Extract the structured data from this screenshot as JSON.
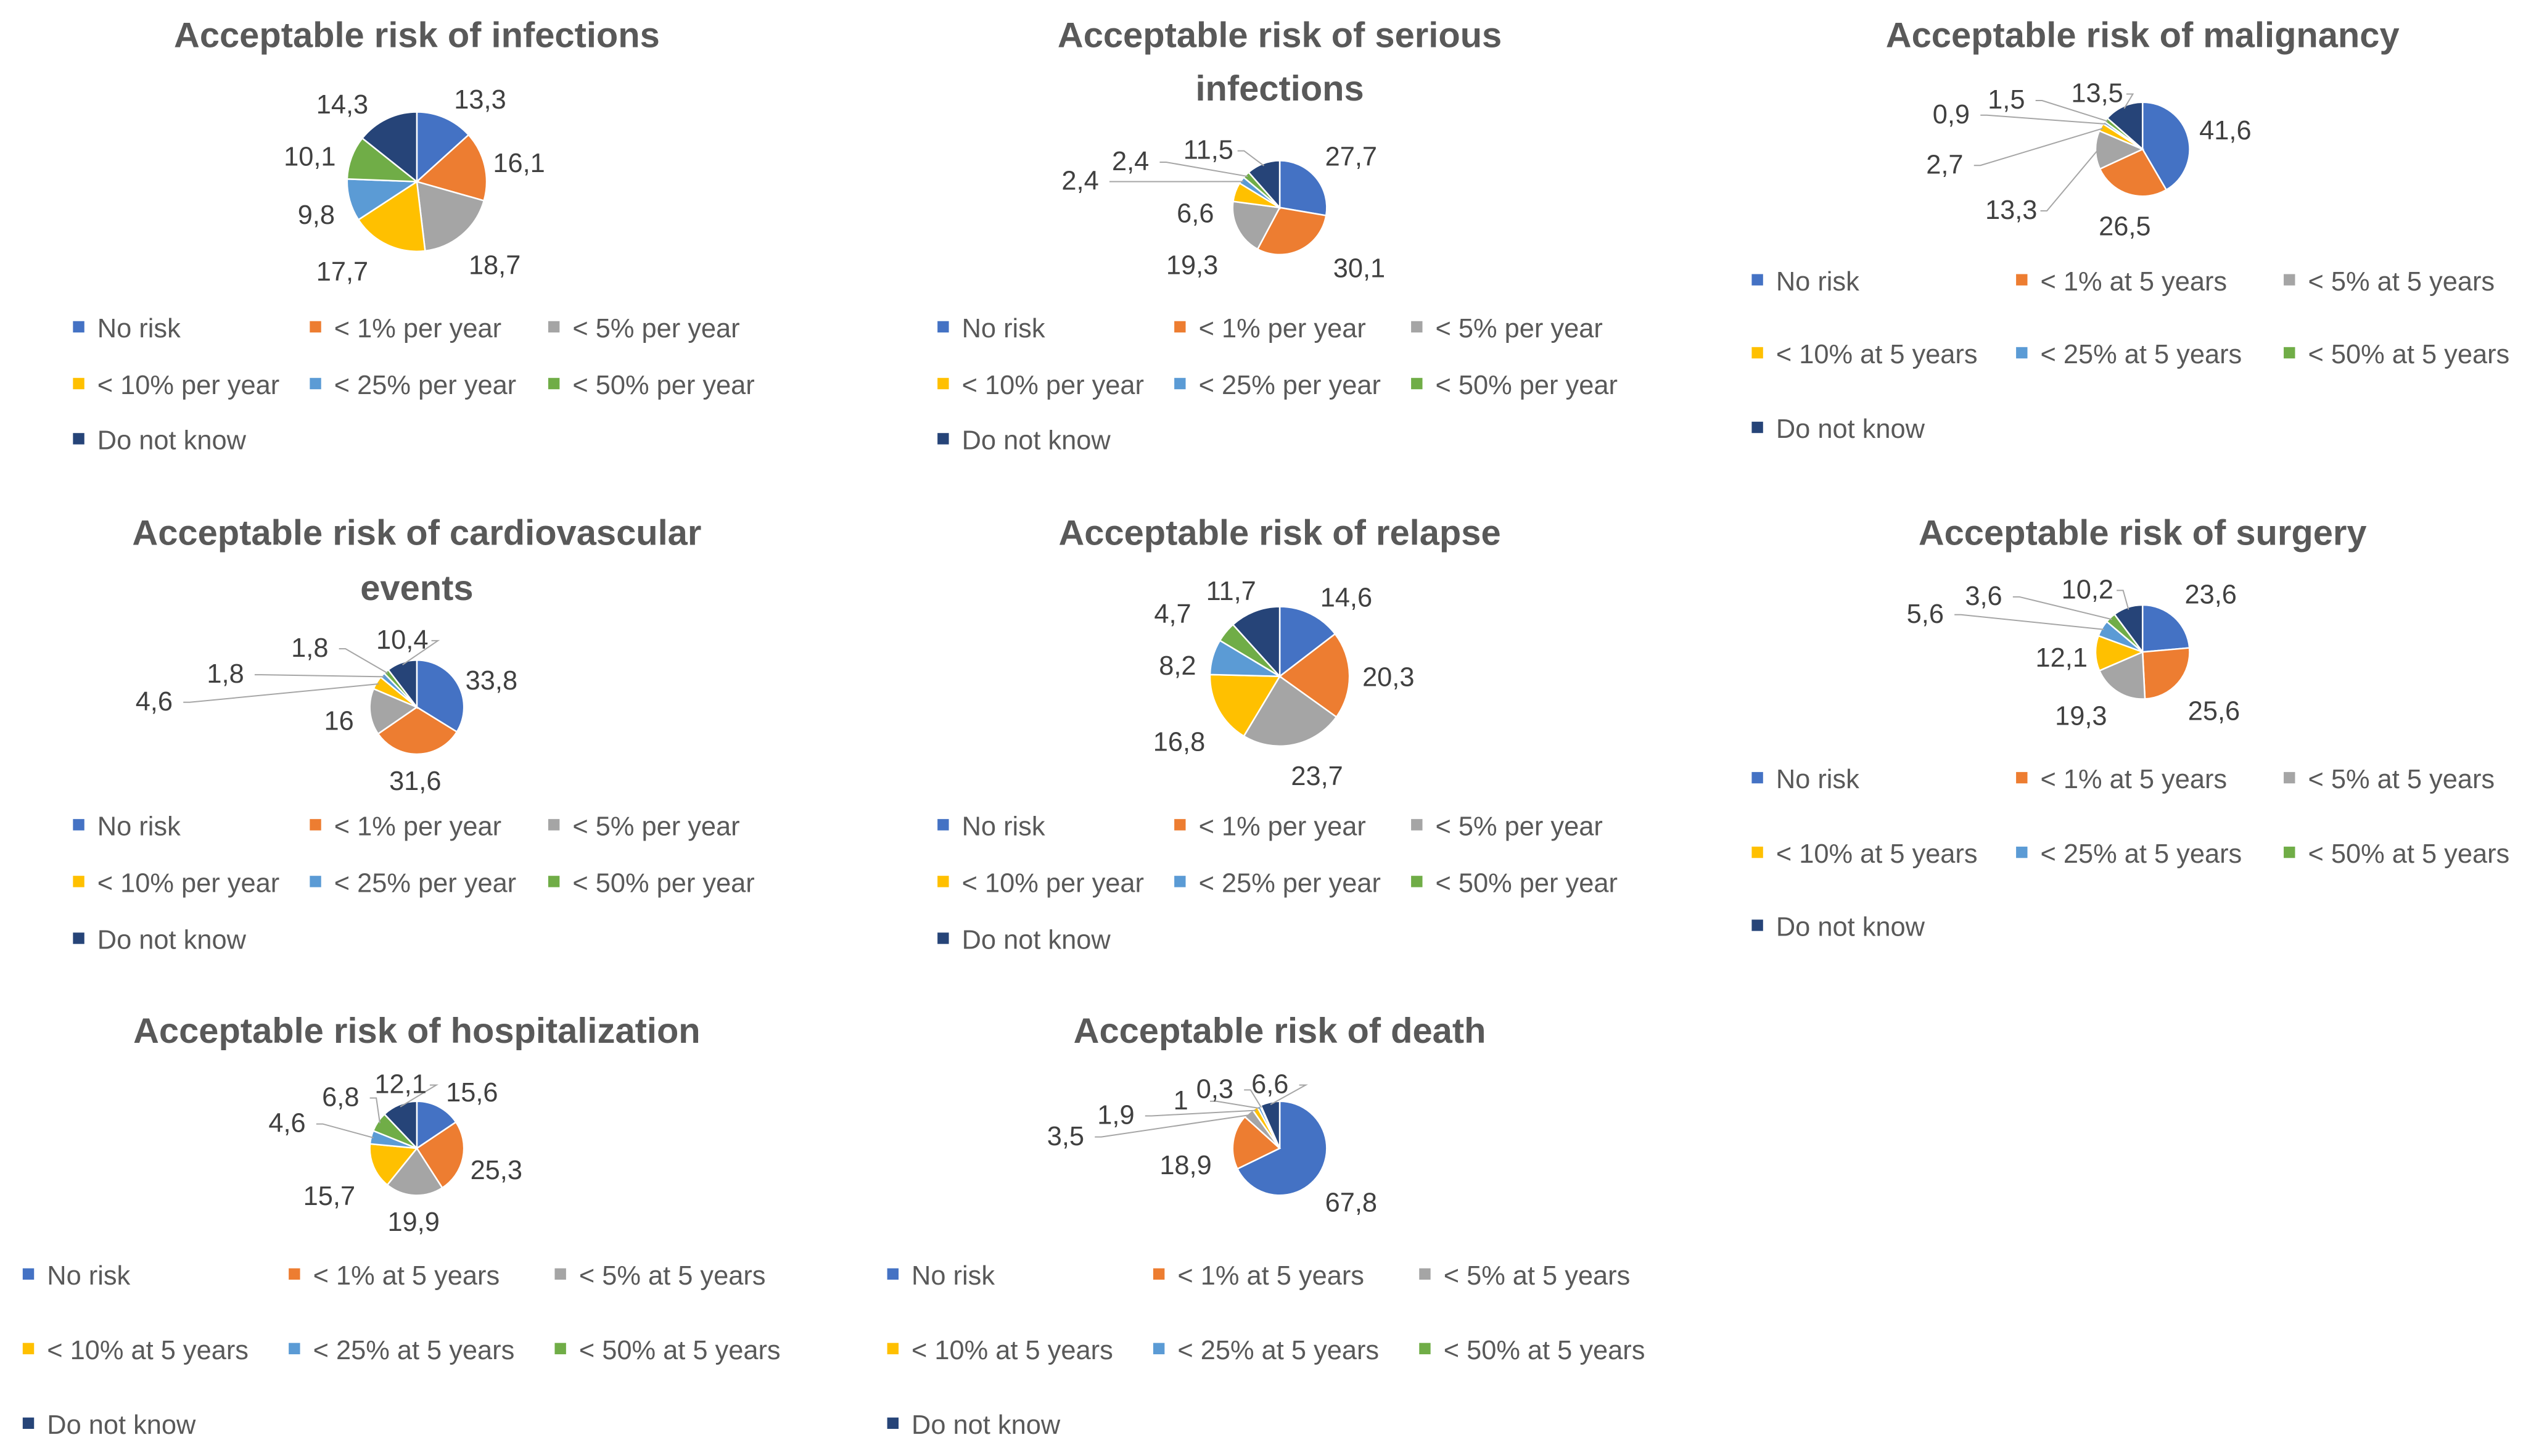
{
  "colors": [
    "#4472C4",
    "#ED7D31",
    "#A5A5A5",
    "#FFC000",
    "#5B9BD5",
    "#70AD47",
    "#264478"
  ],
  "chart_data": [
    {
      "type": "pie",
      "title": "Acceptable risk of infections",
      "categories": [
        "No risk",
        "< 1% per year",
        "< 5% per year",
        "< 10% per year",
        "< 25% per year",
        "< 50% per year",
        "Do not know"
      ],
      "values": [
        13.3,
        16.1,
        18.7,
        17.7,
        9.8,
        10.1,
        14.3
      ],
      "labels": [
        "13,3",
        "16,1",
        "18,7",
        "17,7",
        "9,8",
        "10,1",
        "14,3"
      ]
    },
    {
      "type": "pie",
      "title": "Acceptable risk of serious infections",
      "categories": [
        "No risk",
        "< 1% per year",
        "< 5% per year",
        "< 10% per year",
        "< 25% per year",
        "< 50% per year",
        "Do not know"
      ],
      "values": [
        27.7,
        30.1,
        19.3,
        6.6,
        2.4,
        2.4,
        11.5
      ],
      "labels": [
        "27,7",
        "30,1",
        "19,3",
        "6,6",
        "2,4",
        "2,4",
        "11,5"
      ]
    },
    {
      "type": "pie",
      "title": "Acceptable risk of malignancy",
      "categories": [
        "No risk",
        "< 1% at 5 years",
        "< 5% at 5 years",
        "< 10% at 5 years",
        "< 25% at 5 years",
        "< 50% at 5 years",
        "Do not know"
      ],
      "values": [
        41.6,
        26.5,
        13.3,
        2.7,
        0.9,
        1.5,
        13.5
      ],
      "labels": [
        "41,6",
        "26,5",
        "13,3",
        "2,7",
        "0,9",
        "1,5",
        "13,5"
      ]
    },
    {
      "type": "pie",
      "title": "Acceptable risk of cardiovascular events",
      "categories": [
        "No risk",
        "< 1% per year",
        "< 5% per year",
        "< 10% per year",
        "< 25% per year",
        "< 50% per year",
        "Do not know"
      ],
      "values": [
        33.8,
        31.6,
        16,
        4.6,
        1.8,
        1.8,
        10.4
      ],
      "labels": [
        "33,8",
        "31,6",
        "16",
        "4,6",
        "1,8",
        "1,8",
        "10,4"
      ]
    },
    {
      "type": "pie",
      "title": "Acceptable risk of relapse",
      "categories": [
        "No risk",
        "< 1% per year",
        "< 5% per year",
        "< 10% per year",
        "< 25% per year",
        "< 50% per year",
        "Do not know"
      ],
      "values": [
        14.6,
        20.3,
        23.7,
        16.8,
        8.2,
        4.7,
        11.7
      ],
      "labels": [
        "14,6",
        "20,3",
        "23,7",
        "16,8",
        "8,2",
        "4,7",
        "11,7"
      ]
    },
    {
      "type": "pie",
      "title": "Acceptable risk of surgery",
      "categories": [
        "No risk",
        "< 1% at 5 years",
        "< 5% at 5 years",
        "< 10% at 5 years",
        "< 25% at 5 years",
        "< 50% at 5 years",
        "Do not know"
      ],
      "values": [
        23.6,
        25.6,
        19.3,
        12.1,
        5.6,
        3.6,
        10.2
      ],
      "labels": [
        "23,6",
        "25,6",
        "19,3",
        "12,1",
        "5,6",
        "3,6",
        "10,2"
      ]
    },
    {
      "type": "pie",
      "title": "Acceptable risk of hospitalization",
      "categories": [
        "No risk",
        "< 1% at 5 years",
        "< 5% at 5 years",
        "< 10% at 5 years",
        "< 25% at 5 years",
        "< 50% at 5 years",
        "Do not know"
      ],
      "values": [
        15.6,
        25.3,
        19.9,
        15.7,
        4.6,
        6.8,
        12.1
      ],
      "labels": [
        "15,6",
        "25,3",
        "19,9",
        "15,7",
        "4,6",
        "6,8",
        "12,1"
      ]
    },
    {
      "type": "pie",
      "title": "Acceptable risk of death",
      "categories": [
        "No risk",
        "< 1% at 5 years",
        "< 5% at 5 years",
        "< 10% at 5 years",
        "< 25% at 5 years",
        "< 50% at 5 years",
        "Do not know"
      ],
      "values": [
        67.8,
        18.9,
        3.5,
        1.9,
        1,
        0.3,
        6.6
      ],
      "labels": [
        "67,8",
        "18,9",
        "3,5",
        "1,9",
        "1",
        "0,3",
        "6,6"
      ]
    }
  ]
}
